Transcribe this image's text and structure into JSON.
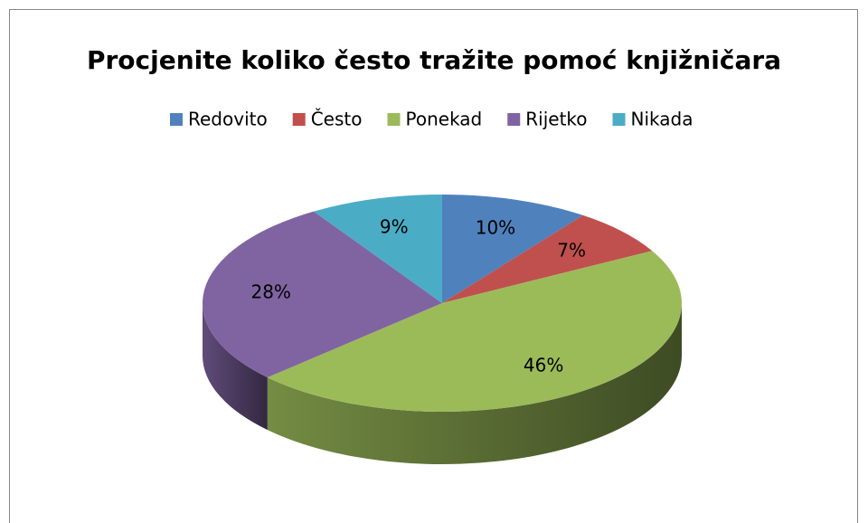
{
  "chart_data": {
    "type": "pie",
    "title": "Procjenite koliko često tražite pomoć knjižničara",
    "categories": [
      "Redovito",
      "Često",
      "Ponekad",
      "Rijetko",
      "Nikada"
    ],
    "values": [
      10,
      7,
      46,
      28,
      9
    ],
    "value_labels": [
      "10%",
      "7%",
      "46%",
      "28%",
      "9%"
    ],
    "colors": [
      "#4f81bd",
      "#c0504d",
      "#9bbb59",
      "#8064a2",
      "#4bacc6"
    ],
    "legend": "top"
  }
}
